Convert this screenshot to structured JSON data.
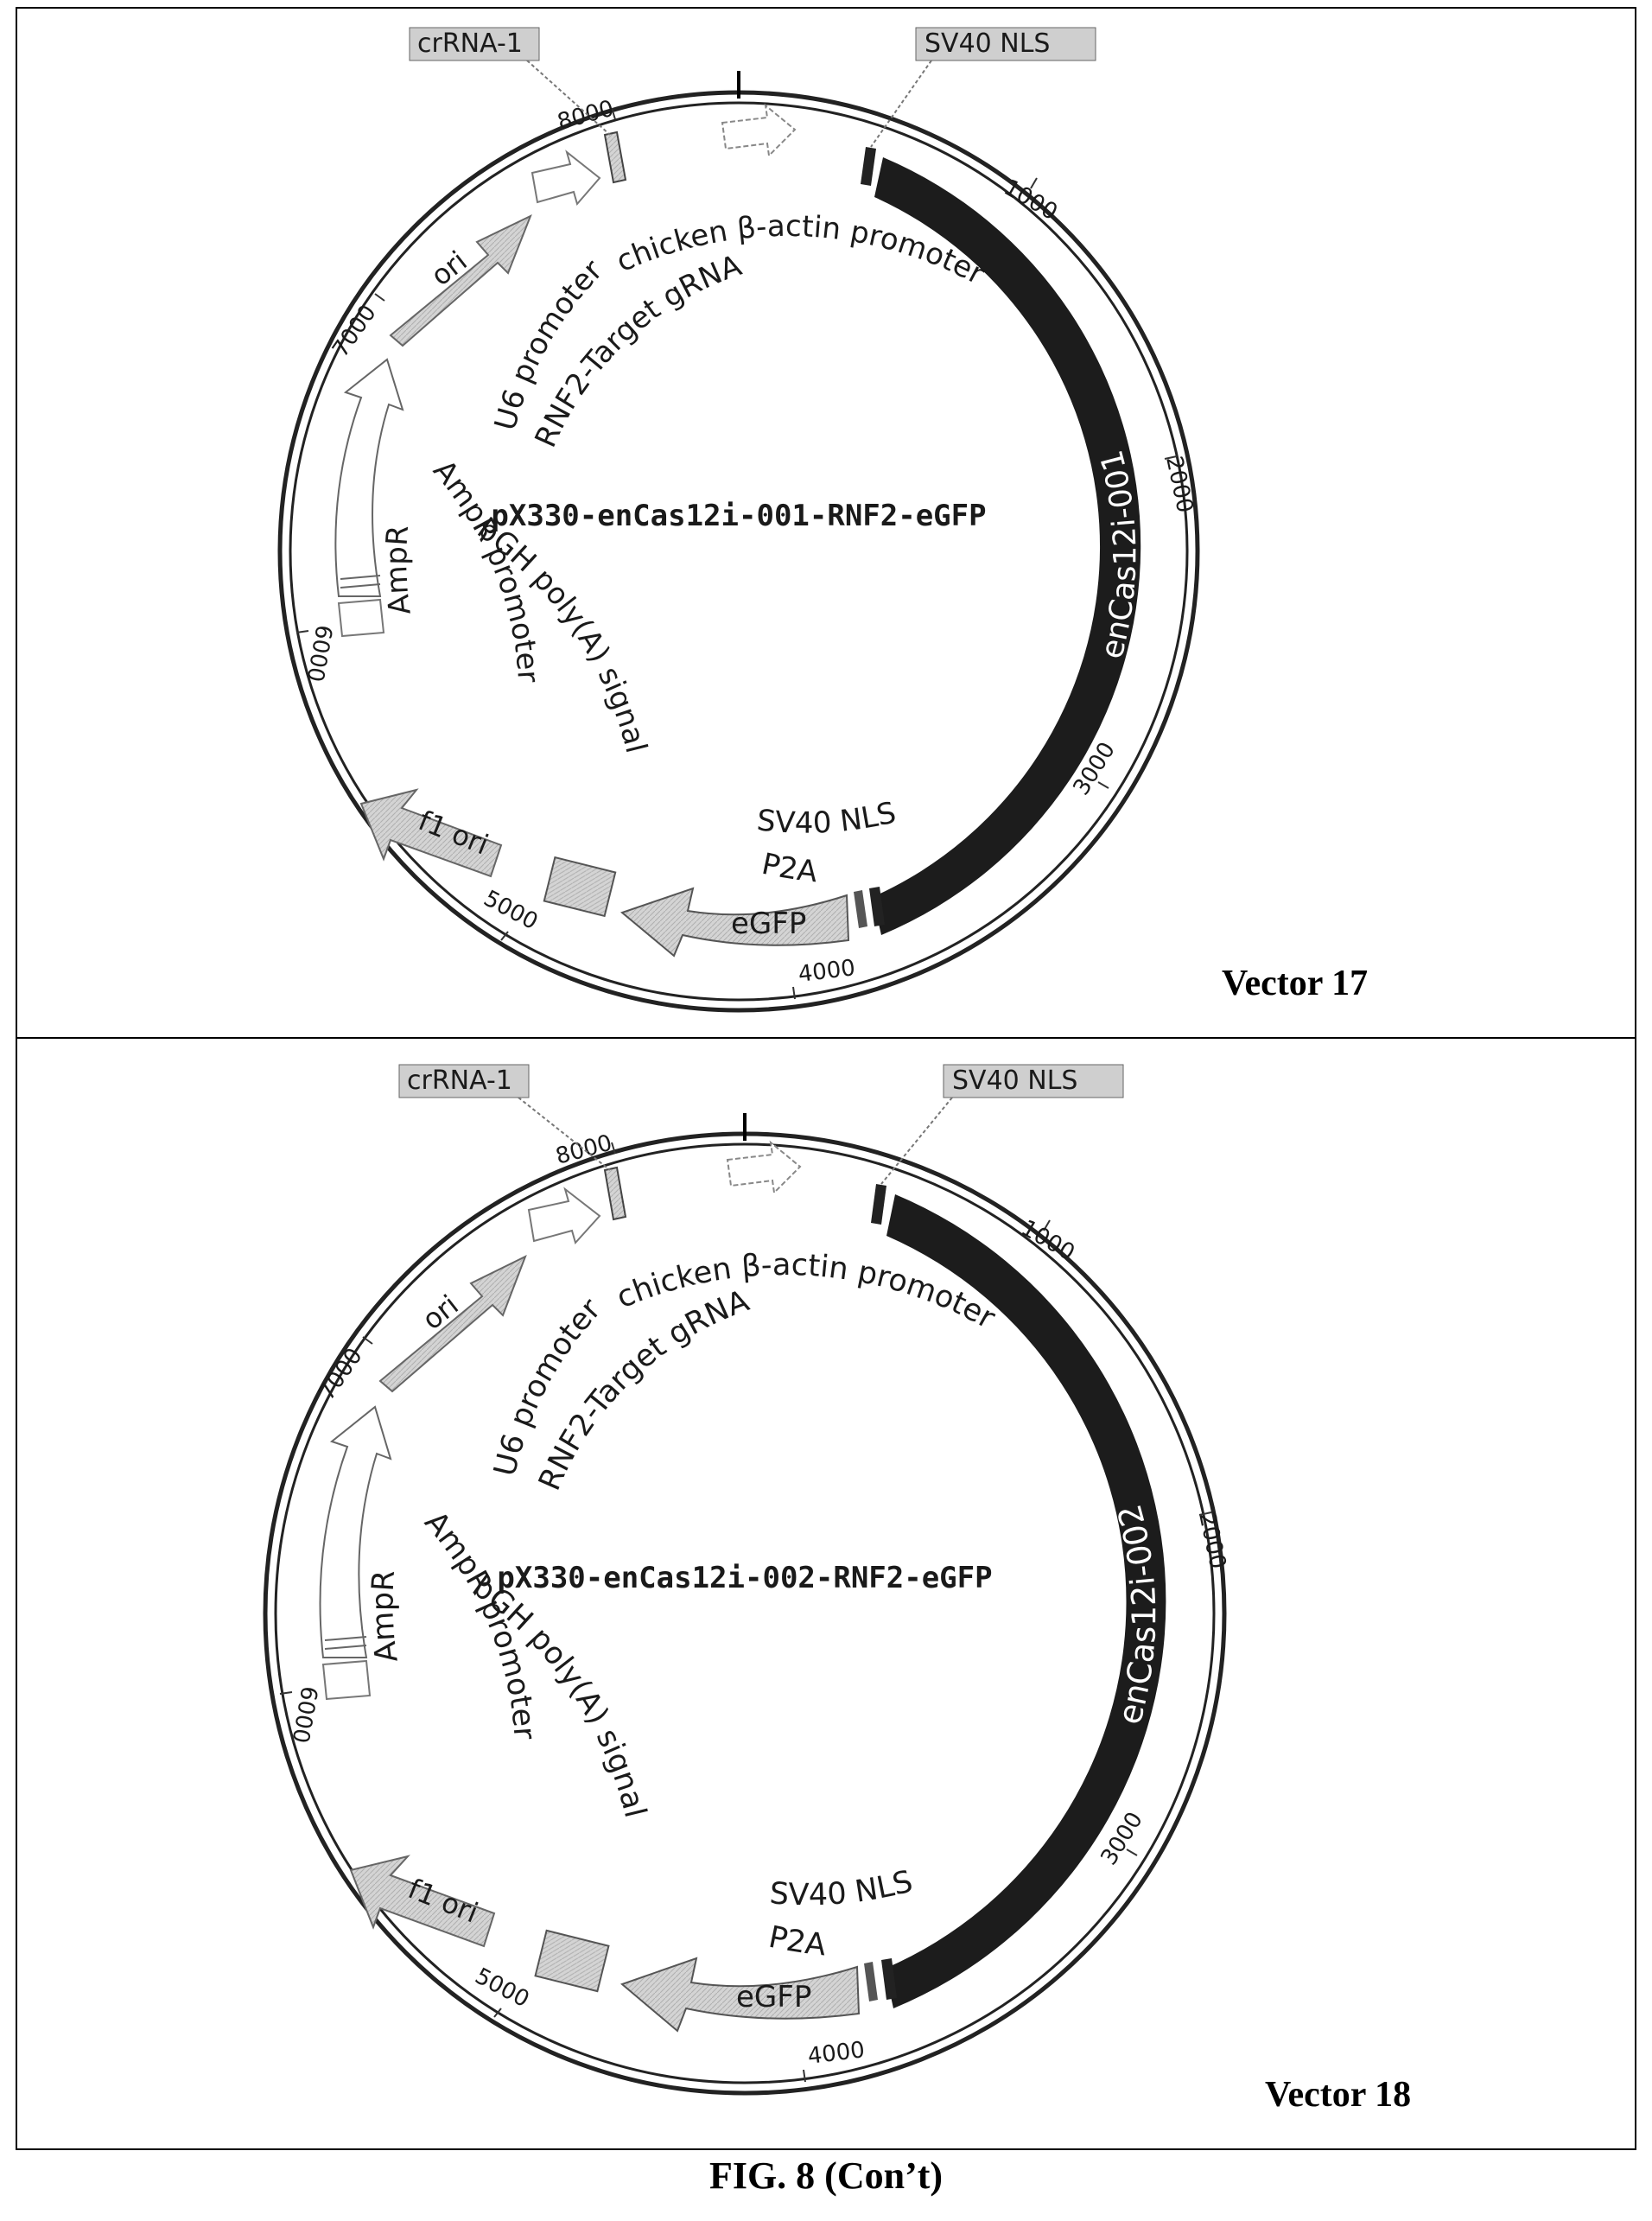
{
  "figure": {
    "caption": "FIG. 8 (Con’t)"
  },
  "common": {
    "top_labels": {
      "crrna": "crRNA-1",
      "sv40_top": "SV40 NLS"
    },
    "features": {
      "chicken_promoter": "chicken β-actin promoter",
      "u6_promoter": "U6 promoter",
      "target_grna": "RNF2-Target gRNA",
      "ori": "ori",
      "ampr": "AmpR",
      "ampr_promoter": "AmpR promoter",
      "bgh": "bGH poly(A) signal",
      "f1_ori": "f1 ori",
      "sv40_bottom": "SV40 NLS",
      "p2a": "P2A",
      "egfp": "eGFP"
    },
    "ticks": [
      "1000",
      "2000",
      "3000",
      "4000",
      "5000",
      "6000",
      "7000",
      "8000"
    ]
  },
  "panels": [
    {
      "vector_label": "Vector 17",
      "plasmid_name": "pX330-enCas12i-001-RNF2-eGFP",
      "cas_label": "enCas12i-001"
    },
    {
      "vector_label": "Vector 18",
      "plasmid_name": "pX330-enCas12i-002-RNF2-eGFP",
      "cas_label": "enCas12i-002"
    }
  ]
}
